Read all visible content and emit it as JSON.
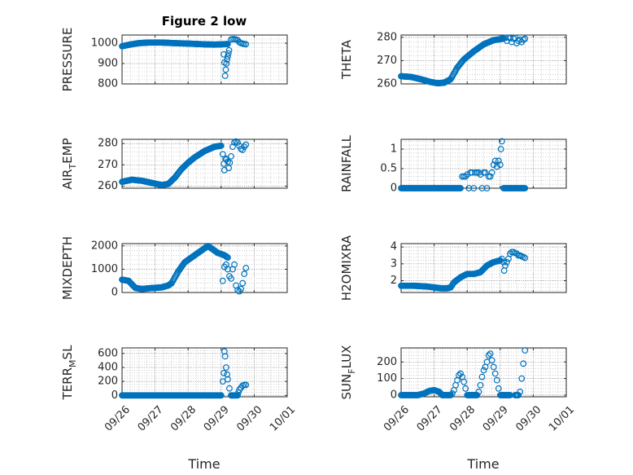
{
  "figure": {
    "title": "Figure 2 low",
    "xlabel": "Time",
    "marker_color": "#0072BD",
    "axis_color": "#262626",
    "grid_color": "#b0b0b0"
  },
  "chart_data": [
    {
      "type": "scatter",
      "id": "pressure",
      "ylabel": "PRESSURE",
      "ylabel_base": "PRESSURE",
      "ylabel_sub": "",
      "ylabel_rest": "",
      "ylim": [
        800,
        1040
      ],
      "yticks": [
        800,
        900,
        1000
      ],
      "xlim": [
        0,
        5
      ],
      "xticks": [
        0,
        1,
        2,
        3,
        4,
        5
      ],
      "xticklabels": [
        "09/26",
        "09/27",
        "09/28",
        "09/29",
        "09/30",
        "10/01"
      ],
      "show_xticklabels": false,
      "grid": true,
      "segments": [
        {
          "x": [
            0.0,
            0.2,
            0.5,
            0.8,
            1.2,
            1.6,
            2.0,
            2.4,
            2.8,
            3.1,
            3.2
          ],
          "y": [
            985,
            992,
            1000,
            1003,
            1003,
            1000,
            998,
            995,
            993,
            995,
            996
          ],
          "step": 0.025
        }
      ],
      "points": [
        {
          "x": 3.08,
          "y": 945
        },
        {
          "x": 3.1,
          "y": 905
        },
        {
          "x": 3.12,
          "y": 840
        },
        {
          "x": 3.14,
          "y": 870
        },
        {
          "x": 3.16,
          "y": 900
        },
        {
          "x": 3.18,
          "y": 920
        },
        {
          "x": 3.2,
          "y": 935
        },
        {
          "x": 3.22,
          "y": 950
        },
        {
          "x": 3.24,
          "y": 965
        },
        {
          "x": 3.3,
          "y": 1018
        },
        {
          "x": 3.35,
          "y": 1020
        },
        {
          "x": 3.4,
          "y": 1020
        },
        {
          "x": 3.45,
          "y": 1018
        },
        {
          "x": 3.5,
          "y": 1015
        },
        {
          "x": 3.55,
          "y": 1005
        },
        {
          "x": 3.6,
          "y": 1000
        },
        {
          "x": 3.65,
          "y": 998
        },
        {
          "x": 3.7,
          "y": 996
        },
        {
          "x": 3.75,
          "y": 995
        }
      ]
    },
    {
      "type": "scatter",
      "id": "theta",
      "ylabel": "THETA",
      "ylabel_base": "THETA",
      "ylabel_sub": "",
      "ylabel_rest": "",
      "ylim": [
        260,
        281
      ],
      "yticks": [
        260,
        270,
        280
      ],
      "xlim": [
        0,
        5
      ],
      "xticks": [
        0,
        1,
        2,
        3,
        4,
        5
      ],
      "xticklabels": [
        "09/26",
        "09/27",
        "09/28",
        "09/29",
        "09/30",
        "10/01"
      ],
      "show_xticklabels": false,
      "grid": true,
      "segments": [
        {
          "x": [
            0.0,
            0.3,
            0.6,
            0.9,
            1.1,
            1.3,
            1.5,
            1.7,
            1.9,
            2.2,
            2.5,
            2.8,
            3.0,
            3.1
          ],
          "y": [
            263.3,
            263.0,
            262.0,
            260.8,
            260.3,
            260.5,
            262.0,
            267.0,
            270.5,
            274.0,
            277.0,
            278.8,
            279.2,
            279.5
          ],
          "step": 0.025
        }
      ],
      "points": [
        {
          "x": 3.15,
          "y": 279.8
        },
        {
          "x": 3.2,
          "y": 278.5
        },
        {
          "x": 3.25,
          "y": 279.9
        },
        {
          "x": 3.3,
          "y": 279.6
        },
        {
          "x": 3.35,
          "y": 278.0
        },
        {
          "x": 3.4,
          "y": 279.5
        },
        {
          "x": 3.45,
          "y": 279.8
        },
        {
          "x": 3.5,
          "y": 277.5
        },
        {
          "x": 3.55,
          "y": 278.5
        },
        {
          "x": 3.6,
          "y": 279.0
        },
        {
          "x": 3.65,
          "y": 278.0
        },
        {
          "x": 3.7,
          "y": 279.0
        },
        {
          "x": 3.75,
          "y": 279.4
        }
      ]
    },
    {
      "type": "scatter",
      "id": "air_temp",
      "ylabel": "AIR_TEMP",
      "ylabel_base": "AIR",
      "ylabel_sub": "T",
      "ylabel_rest": "EMP",
      "ylim": [
        259,
        282
      ],
      "yticks": [
        260,
        270,
        280
      ],
      "xlim": [
        0,
        5
      ],
      "xticks": [
        0,
        1,
        2,
        3,
        4,
        5
      ],
      "xticklabels": [
        "09/26",
        "09/27",
        "09/28",
        "09/29",
        "09/30",
        "10/01"
      ],
      "show_xticklabels": false,
      "grid": true,
      "segments": [
        {
          "x": [
            0.0,
            0.3,
            0.6,
            0.9,
            1.2,
            1.4,
            1.6,
            1.8,
            2.0,
            2.2,
            2.5,
            2.8,
            3.0
          ],
          "y": [
            262.0,
            263.0,
            262.5,
            261.5,
            260.5,
            261.0,
            264.0,
            268.0,
            271.0,
            273.5,
            276.5,
            278.5,
            279.0
          ],
          "step": 0.025
        }
      ],
      "points": [
        {
          "x": 3.05,
          "y": 275.0
        },
        {
          "x": 3.08,
          "y": 270.5
        },
        {
          "x": 3.1,
          "y": 267.5
        },
        {
          "x": 3.13,
          "y": 273.0
        },
        {
          "x": 3.16,
          "y": 272.5
        },
        {
          "x": 3.2,
          "y": 271.5
        },
        {
          "x": 3.23,
          "y": 268.5
        },
        {
          "x": 3.26,
          "y": 271.0
        },
        {
          "x": 3.3,
          "y": 274.0
        },
        {
          "x": 3.35,
          "y": 278.5
        },
        {
          "x": 3.4,
          "y": 280.5
        },
        {
          "x": 3.45,
          "y": 281.0
        },
        {
          "x": 3.5,
          "y": 280.5
        },
        {
          "x": 3.55,
          "y": 279.0
        },
        {
          "x": 3.6,
          "y": 277.5
        },
        {
          "x": 3.65,
          "y": 277.0
        },
        {
          "x": 3.7,
          "y": 278.5
        },
        {
          "x": 3.75,
          "y": 279.5
        }
      ]
    },
    {
      "type": "scatter",
      "id": "rainfall",
      "ylabel": "RAINFALL",
      "ylabel_base": "RAINFALL",
      "ylabel_sub": "",
      "ylabel_rest": "",
      "ylim": [
        0,
        1.25
      ],
      "yticks": [
        0,
        0.5,
        1
      ],
      "yticklabels": [
        "0",
        "0.5",
        "1"
      ],
      "xlim": [
        0,
        5
      ],
      "xticks": [
        0,
        1,
        2,
        3,
        4,
        5
      ],
      "xticklabels": [
        "09/26",
        "09/27",
        "09/28",
        "09/29",
        "09/30",
        "10/01"
      ],
      "show_xticklabels": false,
      "grid": true,
      "segments": [
        {
          "x": [
            0.0,
            1.8
          ],
          "y": [
            0,
            0
          ],
          "step": 0.025
        },
        {
          "x": [
            3.1,
            3.75
          ],
          "y": [
            0,
            0
          ],
          "step": 0.025
        }
      ],
      "points": [
        {
          "x": 1.85,
          "y": 0.3
        },
        {
          "x": 1.9,
          "y": 0.3
        },
        {
          "x": 1.95,
          "y": 0.3
        },
        {
          "x": 2.0,
          "y": 0.35
        },
        {
          "x": 2.05,
          "y": 0.0
        },
        {
          "x": 2.1,
          "y": 0.4
        },
        {
          "x": 2.15,
          "y": 0.4
        },
        {
          "x": 2.2,
          "y": 0.0
        },
        {
          "x": 2.25,
          "y": 0.4
        },
        {
          "x": 2.3,
          "y": 0.4
        },
        {
          "x": 2.35,
          "y": 0.4
        },
        {
          "x": 2.4,
          "y": 0.35
        },
        {
          "x": 2.45,
          "y": 0.0
        },
        {
          "x": 2.5,
          "y": 0.4
        },
        {
          "x": 2.55,
          "y": 0.4
        },
        {
          "x": 2.6,
          "y": 0.0
        },
        {
          "x": 2.65,
          "y": 0.3
        },
        {
          "x": 2.7,
          "y": 0.3
        },
        {
          "x": 2.75,
          "y": 0.4
        },
        {
          "x": 2.8,
          "y": 0.6
        },
        {
          "x": 2.85,
          "y": 0.7
        },
        {
          "x": 2.9,
          "y": 0.55
        },
        {
          "x": 2.95,
          "y": 0.7
        },
        {
          "x": 3.0,
          "y": 0.6
        },
        {
          "x": 3.02,
          "y": 1.0
        },
        {
          "x": 3.05,
          "y": 1.2
        }
      ]
    },
    {
      "type": "scatter",
      "id": "mixdepth",
      "ylabel": "MIXDEPTH",
      "ylabel_base": "MIXDEPTH",
      "ylabel_sub": "",
      "ylabel_rest": "",
      "ylim": [
        0,
        2100
      ],
      "yticks": [
        0,
        1000,
        2000
      ],
      "xlim": [
        0,
        5
      ],
      "xticks": [
        0,
        1,
        2,
        3,
        4,
        5
      ],
      "xticklabels": [
        "09/26",
        "09/27",
        "09/28",
        "09/29",
        "09/30",
        "10/01"
      ],
      "show_xticklabels": false,
      "grid": true,
      "segments": [
        {
          "x": [
            0.0,
            0.2,
            0.4,
            0.6,
            0.8,
            1.0,
            1.2,
            1.4,
            1.5,
            1.7,
            1.9,
            2.1,
            2.3,
            2.5,
            2.6,
            2.7,
            2.9,
            3.1,
            3.2
          ],
          "y": [
            550,
            500,
            200,
            150,
            180,
            200,
            220,
            300,
            400,
            900,
            1300,
            1500,
            1700,
            1900,
            2000,
            1900,
            1700,
            1600,
            1500
          ],
          "step": 0.025
        }
      ],
      "points": [
        {
          "x": 3.05,
          "y": 500
        },
        {
          "x": 3.1,
          "y": 1100
        },
        {
          "x": 3.15,
          "y": 1200
        },
        {
          "x": 3.2,
          "y": 1000
        },
        {
          "x": 3.25,
          "y": 700
        },
        {
          "x": 3.3,
          "y": 600
        },
        {
          "x": 3.35,
          "y": 1000
        },
        {
          "x": 3.4,
          "y": 1200
        },
        {
          "x": 3.45,
          "y": 300
        },
        {
          "x": 3.5,
          "y": 100
        },
        {
          "x": 3.55,
          "y": 50
        },
        {
          "x": 3.6,
          "y": 150
        },
        {
          "x": 3.65,
          "y": 400
        },
        {
          "x": 3.7,
          "y": 800
        },
        {
          "x": 3.75,
          "y": 1050
        }
      ]
    },
    {
      "type": "scatter",
      "id": "h2omixra",
      "ylabel": "H2OMIXRA",
      "ylabel_base": "H2OMIXRA",
      "ylabel_sub": "",
      "ylabel_rest": "",
      "ylim": [
        1.3,
        4.2
      ],
      "yticks": [
        2,
        3,
        4
      ],
      "xlim": [
        0,
        5
      ],
      "xticks": [
        0,
        1,
        2,
        3,
        4,
        5
      ],
      "xticklabels": [
        "09/26",
        "09/27",
        "09/28",
        "09/29",
        "09/30",
        "10/01"
      ],
      "show_xticklabels": false,
      "grid": true,
      "segments": [
        {
          "x": [
            0.0,
            0.4,
            0.8,
            1.2,
            1.4,
            1.5,
            1.6,
            1.8,
            2.0,
            2.2,
            2.4,
            2.6,
            2.8,
            3.0
          ],
          "y": [
            1.7,
            1.7,
            1.65,
            1.55,
            1.55,
            1.6,
            1.9,
            2.2,
            2.4,
            2.4,
            2.5,
            2.9,
            3.1,
            3.2
          ],
          "step": 0.025
        }
      ],
      "points": [
        {
          "x": 3.05,
          "y": 3.3
        },
        {
          "x": 3.1,
          "y": 3.1
        },
        {
          "x": 3.12,
          "y": 2.6
        },
        {
          "x": 3.15,
          "y": 2.9
        },
        {
          "x": 3.2,
          "y": 3.1
        },
        {
          "x": 3.25,
          "y": 3.3
        },
        {
          "x": 3.3,
          "y": 3.6
        },
        {
          "x": 3.35,
          "y": 3.7
        },
        {
          "x": 3.4,
          "y": 3.7
        },
        {
          "x": 3.45,
          "y": 3.65
        },
        {
          "x": 3.5,
          "y": 3.6
        },
        {
          "x": 3.55,
          "y": 3.5
        },
        {
          "x": 3.6,
          "y": 3.5
        },
        {
          "x": 3.65,
          "y": 3.45
        },
        {
          "x": 3.7,
          "y": 3.4
        },
        {
          "x": 3.75,
          "y": 3.35
        }
      ]
    },
    {
      "type": "scatter",
      "id": "terr_msl",
      "ylabel": "TERR_MSL",
      "ylabel_base": "TERR",
      "ylabel_sub": "M",
      "ylabel_rest": "SL",
      "ylim": [
        -20,
        680
      ],
      "yticks": [
        0,
        200,
        400,
        600
      ],
      "xlim": [
        0,
        5
      ],
      "xticks": [
        0,
        1,
        2,
        3,
        4,
        5
      ],
      "xticklabels": [
        "09/26",
        "09/27",
        "09/28",
        "09/29",
        "09/30",
        "10/01"
      ],
      "show_xticklabels": true,
      "grid": true,
      "segments": [
        {
          "x": [
            0.0,
            3.0
          ],
          "y": [
            0,
            0
          ],
          "step": 0.025
        },
        {
          "x": [
            3.3,
            3.5
          ],
          "y": [
            0,
            0
          ],
          "step": 0.025
        }
      ],
      "points": [
        {
          "x": 3.05,
          "y": 200
        },
        {
          "x": 3.08,
          "y": 320
        },
        {
          "x": 3.1,
          "y": 630
        },
        {
          "x": 3.12,
          "y": 560
        },
        {
          "x": 3.15,
          "y": 400
        },
        {
          "x": 3.18,
          "y": 300
        },
        {
          "x": 3.2,
          "y": 230
        },
        {
          "x": 3.25,
          "y": 100
        },
        {
          "x": 3.52,
          "y": 40
        },
        {
          "x": 3.55,
          "y": 80
        },
        {
          "x": 3.6,
          "y": 110
        },
        {
          "x": 3.65,
          "y": 140
        },
        {
          "x": 3.7,
          "y": 150
        },
        {
          "x": 3.75,
          "y": 150
        }
      ]
    },
    {
      "type": "scatter",
      "id": "sun_flux",
      "ylabel": "SUN_FLUX",
      "ylabel_base": "SUN",
      "ylabel_sub": "F",
      "ylabel_rest": "LUX",
      "ylim": [
        -10,
        285
      ],
      "yticks": [
        0,
        100,
        200
      ],
      "xlim": [
        0,
        5
      ],
      "xticks": [
        0,
        1,
        2,
        3,
        4,
        5
      ],
      "xticklabels": [
        "09/26",
        "09/27",
        "09/28",
        "09/29",
        "09/30",
        "10/01"
      ],
      "show_xticklabels": true,
      "grid": true,
      "segments": [
        {
          "x": [
            0.0,
            0.5
          ],
          "y": [
            0,
            0
          ],
          "step": 0.025
        },
        {
          "x": [
            0.5,
            0.7,
            0.85,
            1.0,
            1.15,
            1.25
          ],
          "y": [
            0,
            10,
            25,
            30,
            20,
            0
          ],
          "step": 0.025
        },
        {
          "x": [
            1.25,
            1.5
          ],
          "y": [
            0,
            0
          ],
          "step": 0.025
        },
        {
          "x": [
            2.0,
            2.3
          ],
          "y": [
            0,
            0
          ],
          "step": 0.025
        },
        {
          "x": [
            3.0,
            3.3
          ],
          "y": [
            0,
            0
          ],
          "step": 0.025
        },
        {
          "x": [
            3.45,
            3.55
          ],
          "y": [
            0,
            0
          ],
          "step": 0.025
        }
      ],
      "points": [
        {
          "x": 1.55,
          "y": 10
        },
        {
          "x": 1.6,
          "y": 30
        },
        {
          "x": 1.65,
          "y": 60
        },
        {
          "x": 1.7,
          "y": 90
        },
        {
          "x": 1.75,
          "y": 120
        },
        {
          "x": 1.8,
          "y": 130
        },
        {
          "x": 1.85,
          "y": 110
        },
        {
          "x": 1.9,
          "y": 80
        },
        {
          "x": 1.95,
          "y": 40
        },
        {
          "x": 2.35,
          "y": 20
        },
        {
          "x": 2.4,
          "y": 60
        },
        {
          "x": 2.45,
          "y": 110
        },
        {
          "x": 2.5,
          "y": 150
        },
        {
          "x": 2.55,
          "y": 170
        },
        {
          "x": 2.6,
          "y": 200
        },
        {
          "x": 2.65,
          "y": 240
        },
        {
          "x": 2.7,
          "y": 250
        },
        {
          "x": 2.75,
          "y": 210
        },
        {
          "x": 2.8,
          "y": 170
        },
        {
          "x": 2.85,
          "y": 130
        },
        {
          "x": 2.9,
          "y": 90
        },
        {
          "x": 2.95,
          "y": 40
        },
        {
          "x": 3.6,
          "y": 20
        },
        {
          "x": 3.65,
          "y": 100
        },
        {
          "x": 3.7,
          "y": 190
        },
        {
          "x": 3.75,
          "y": 270
        }
      ]
    }
  ]
}
